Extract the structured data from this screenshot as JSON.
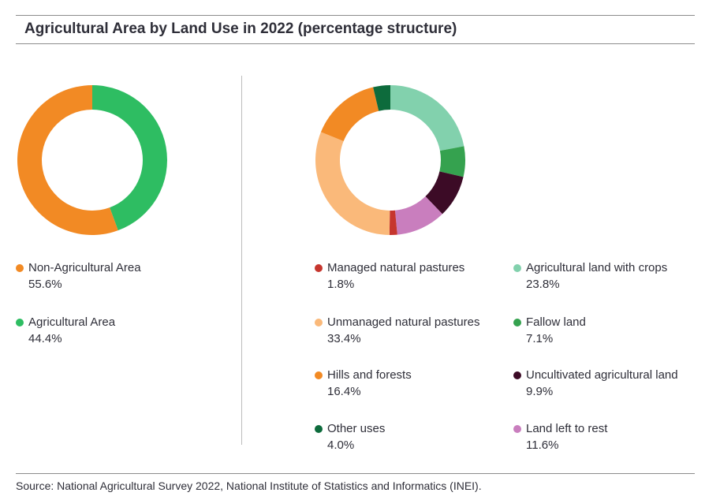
{
  "title": "Agricultural Area by Land Use in 2022 (percentage structure)",
  "source": "Source: National Agricultural Survey 2022, National Institute of Statistics and Informatics (INEI).",
  "chart_data": [
    {
      "type": "pie",
      "variant": "donut",
      "title": "Agricultural Area by Land Use in 2022 (percentage structure)",
      "slices": [
        {
          "key": "agricultural-area",
          "label": "Agricultural Area",
          "value": 44.4,
          "display": "44.4%",
          "color": "#2ebd62"
        },
        {
          "key": "non-agricultural-area",
          "label": "Non-Agricultural Area",
          "value": 55.6,
          "display": "55.6%",
          "color": "#f28a24"
        }
      ]
    },
    {
      "type": "pie",
      "variant": "donut",
      "title": "Agricultural Area by Land Use in 2022 (percentage structure)",
      "slices": [
        {
          "key": "agricultural-land-with-crops",
          "label": "Agricultural land with crops",
          "value": 23.8,
          "display": "23.8%",
          "color": "#82d1ad"
        },
        {
          "key": "fallow-land",
          "label": "Fallow land",
          "value": 7.1,
          "display": "7.1%",
          "color": "#35a24f"
        },
        {
          "key": "uncultivated-agricultural-land",
          "label": "Uncultivated agricultural land",
          "value": 9.9,
          "display": "9.9%",
          "color": "#3c0b26"
        },
        {
          "key": "land-left-to-rest",
          "label": "Land left to rest",
          "value": 11.6,
          "display": "11.6%",
          "color": "#c97ebe"
        },
        {
          "key": "managed-natural-pastures",
          "label": "Managed natural pastures",
          "value": 1.8,
          "display": "1.8%",
          "color": "#c6362e"
        },
        {
          "key": "unmanaged-natural-pastures",
          "label": "Unmanaged natural pastures",
          "value": 33.4,
          "display": "33.4%",
          "color": "#fab97a"
        },
        {
          "key": "hills-and-forests",
          "label": "Hills and forests",
          "value": 16.4,
          "display": "16.4%",
          "color": "#f28a24"
        },
        {
          "key": "other-uses",
          "label": "Other uses",
          "value": 4.0,
          "display": "4.0%",
          "color": "#0d6b3c"
        }
      ]
    }
  ]
}
